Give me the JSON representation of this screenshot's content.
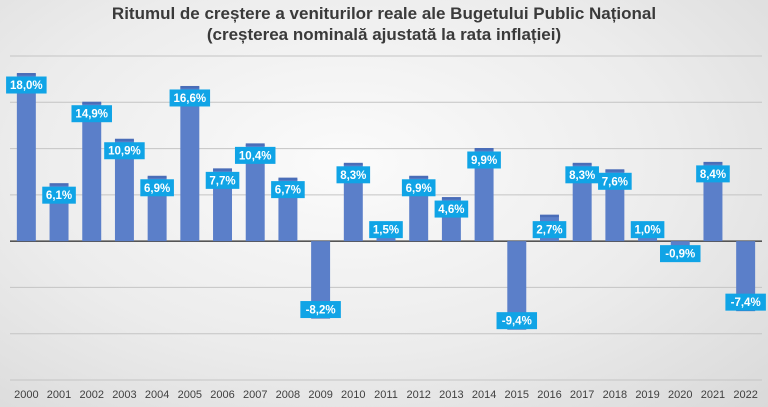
{
  "chart_data": {
    "type": "bar",
    "title": "Ritumul de creștere a veniturilor reale ale Bugetului Public Național",
    "subtitle": "(creșterea nominală ajustată la rata inflației)",
    "xlabel": "",
    "ylabel": "",
    "categories": [
      "2000",
      "2001",
      "2002",
      "2003",
      "2004",
      "2005",
      "2006",
      "2007",
      "2008",
      "2009",
      "2010",
      "2011",
      "2012",
      "2013",
      "2014",
      "2015",
      "2016",
      "2017",
      "2018",
      "2019",
      "2020",
      "2021",
      "2022"
    ],
    "values": [
      18.0,
      6.1,
      14.9,
      10.9,
      6.9,
      16.6,
      7.7,
      10.4,
      6.7,
      -8.2,
      8.3,
      1.5,
      6.9,
      4.6,
      9.9,
      -9.4,
      2.7,
      8.3,
      7.6,
      1.0,
      -0.9,
      8.4,
      -7.4
    ],
    "data_labels": [
      "18,0%",
      "6,1%",
      "14,9%",
      "10,9%",
      "6,9%",
      "16,6%",
      "7,7%",
      "10,4%",
      "6,7%",
      "-8,2%",
      "8,3%",
      "1,5%",
      "6,9%",
      "4,6%",
      "9,9%",
      "-9,4%",
      "2,7%",
      "8,3%",
      "7,6%",
      "1,0%",
      "-0,9%",
      "8,4%",
      "-7,4%"
    ],
    "ylim": [
      -15,
      20
    ],
    "y_gridlines": [
      -15,
      -10,
      -5,
      0,
      5,
      10,
      15,
      20
    ],
    "grid": true,
    "y_tick_labels_shown": false,
    "legend": "none",
    "colors": {
      "bar": "#5b7fc9",
      "label_bg": "#10a4e6",
      "label_text": "#ffffff"
    }
  }
}
